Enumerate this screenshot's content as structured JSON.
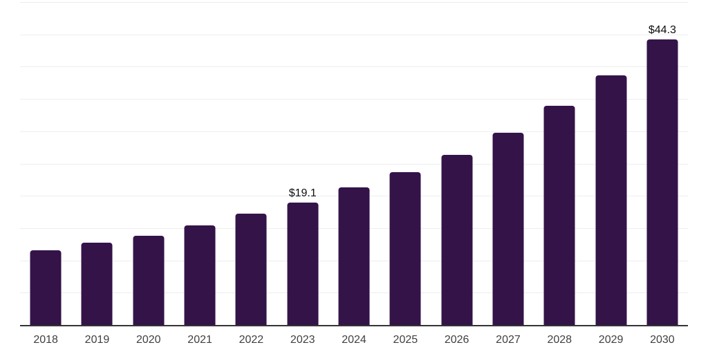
{
  "chart": {
    "colors": {
      "background": "#ffffff",
      "bar": "#341349",
      "gridline": "#eeeeee",
      "axis_line": "#333333",
      "tick_label": "#404040",
      "data_label": "#0d0d0d"
    }
  },
  "chart_data": {
    "type": "bar",
    "title": "",
    "xlabel": "",
    "ylabel": "",
    "categories": [
      "2018",
      "2019",
      "2020",
      "2021",
      "2022",
      "2023",
      "2024",
      "2025",
      "2026",
      "2027",
      "2028",
      "2029",
      "2030"
    ],
    "values": [
      11.7,
      12.9,
      13.9,
      15.5,
      17.3,
      19.1,
      21.4,
      23.8,
      26.5,
      29.9,
      34.0,
      38.8,
      44.3
    ],
    "data_labels": {
      "2023": "$19.1",
      "2030": "$44.3"
    },
    "ylim": [
      0,
      50
    ],
    "gridline_step": 5,
    "grid": "on",
    "legend": "none"
  }
}
